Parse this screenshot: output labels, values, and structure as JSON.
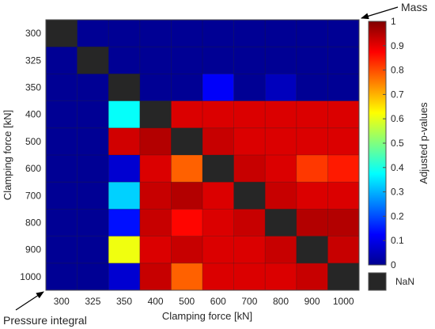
{
  "chart_data": {
    "type": "heatmap",
    "title": "",
    "row_labels": [
      "300",
      "325",
      "350",
      "400",
      "500",
      "600",
      "700",
      "800",
      "900",
      "1000"
    ],
    "col_labels": [
      "300",
      "325",
      "350",
      "400",
      "500",
      "600",
      "700",
      "800",
      "900",
      "1000"
    ],
    "ylabel": "Clamping force [kN]",
    "xlabel": "Clamping force [kN]",
    "upper_triangle_label": "Mass",
    "lower_triangle_label": "Pressure integral",
    "values": [
      [
        null,
        0.02,
        0.02,
        0.02,
        0.02,
        0.02,
        0.02,
        0.02,
        0.02,
        0.02
      ],
      [
        0.02,
        null,
        0.02,
        0.02,
        0.02,
        0.02,
        0.02,
        0.02,
        0.02,
        0.02
      ],
      [
        0.02,
        0.02,
        null,
        0.02,
        0.02,
        0.12,
        0.02,
        0.06,
        0.02,
        0.02
      ],
      [
        0.02,
        0.02,
        0.38,
        null,
        0.91,
        0.91,
        0.91,
        0.91,
        0.91,
        0.91
      ],
      [
        0.02,
        0.02,
        0.92,
        0.95,
        null,
        0.93,
        0.91,
        0.91,
        0.91,
        0.91
      ],
      [
        0.02,
        0.02,
        0.08,
        0.91,
        0.78,
        null,
        0.93,
        0.91,
        0.82,
        0.85
      ],
      [
        0.02,
        0.02,
        0.33,
        0.93,
        0.95,
        0.91,
        null,
        0.93,
        0.91,
        0.91
      ],
      [
        0.02,
        0.02,
        0.14,
        0.93,
        0.87,
        0.91,
        0.93,
        null,
        0.95,
        0.95
      ],
      [
        0.02,
        0.02,
        0.61,
        0.91,
        0.93,
        0.91,
        0.91,
        0.93,
        null,
        0.93
      ],
      [
        0.02,
        0.02,
        0.08,
        0.93,
        0.78,
        0.91,
        0.91,
        0.91,
        0.93,
        null
      ]
    ],
    "colorbar": {
      "label": "Adjusted p-values",
      "range": [
        0,
        1
      ],
      "ticks": [
        "0",
        "0.1",
        "0.2",
        "0.3",
        "0.4",
        "0.5",
        "0.6",
        "0.7",
        "0.8",
        "0.9",
        "1"
      ],
      "nan_label": "NaN",
      "nan_color": "#262626",
      "colormap": "jet"
    }
  }
}
